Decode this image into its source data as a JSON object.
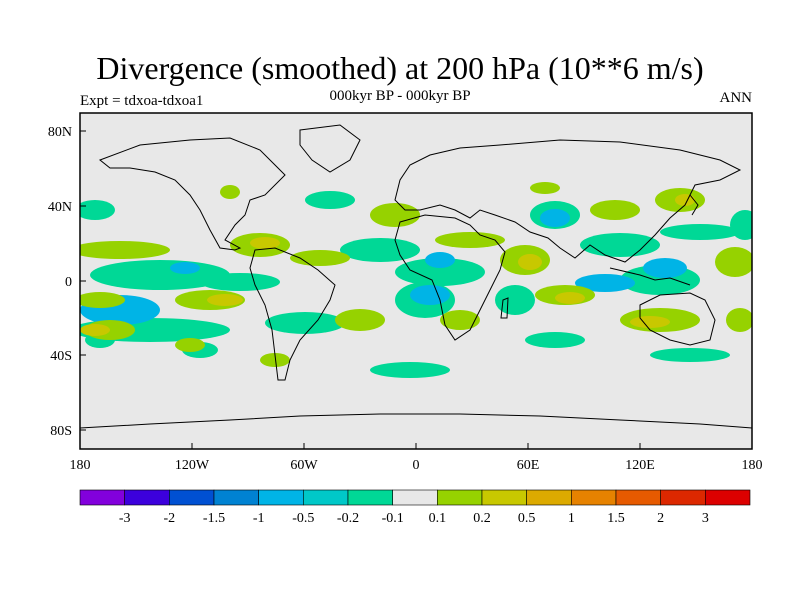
{
  "title": "Divergence (smoothed) at 200 hPa (10**6 m/s)",
  "subtitle": "000kyr BP - 000kyr BP",
  "experiment": "Expt = tdxoa-tdxoa1",
  "season": "ANN",
  "map": {
    "lon_ticks": [
      "180",
      "120W",
      "60W",
      "0",
      "60E",
      "120E",
      "180"
    ],
    "lat_ticks": [
      "80N",
      "40N",
      "0",
      "40S",
      "80S"
    ],
    "colors": {
      "land_ocean_background": "#e8e8e8",
      "negative_small": "#00d896",
      "negative_mid": "#00c8c8",
      "negative_large": "#00b4e6",
      "positive_small": "#96d200",
      "positive_mid": "#c8c800",
      "coastline": "#000000"
    }
  },
  "colorbar": {
    "labels": [
      "-3",
      "-2",
      "-1.5",
      "-1",
      "-0.5",
      "-0.2",
      "-0.1",
      "0.1",
      "0.2",
      "0.5",
      "1",
      "1.5",
      "2",
      "3"
    ],
    "colors": [
      "#8200dc",
      "#3c00dc",
      "#0050d2",
      "#0082d2",
      "#00b4e6",
      "#00c8c8",
      "#00d896",
      "#e8e8e8",
      "#96d200",
      "#c8c800",
      "#dcaa00",
      "#e68200",
      "#e65a00",
      "#dc2800",
      "#dc0000"
    ]
  }
}
